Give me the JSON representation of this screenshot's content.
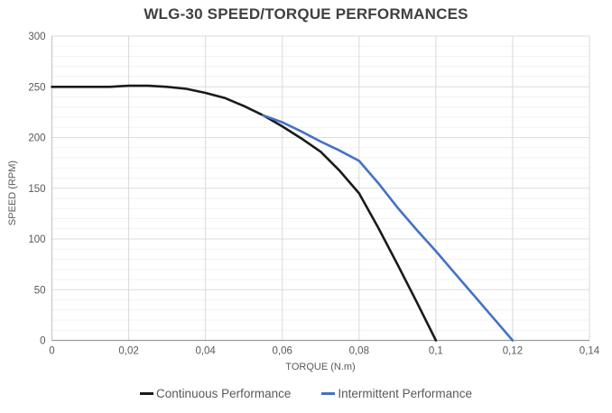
{
  "chart": {
    "title": "WLG-30 SPEED/TORQUE PERFORMANCES",
    "x_axis_title": "TORQUE (N.m)",
    "y_axis_title": "SPEED (RPM)"
  },
  "chart_data": {
    "type": "line",
    "title": "WLG-30 SPEED/TORQUE PERFORMANCES",
    "xlabel": "TORQUE (N.m)",
    "ylabel": "SPEED (RPM)",
    "xlim": [
      0,
      0.14
    ],
    "ylim": [
      0,
      300
    ],
    "x_ticks": [
      0,
      0.02,
      0.04,
      0.06,
      0.08,
      0.1,
      0.12,
      0.14
    ],
    "x_tick_labels": [
      "0",
      "0,02",
      "0,04",
      "0,06",
      "0,08",
      "0,1",
      "0,12",
      "0,14"
    ],
    "y_ticks": [
      0,
      50,
      100,
      150,
      200,
      250,
      300
    ],
    "y_tick_labels": [
      "0",
      "50",
      "100",
      "150",
      "200",
      "250",
      "300"
    ],
    "grid": {
      "major_y_step": 50,
      "minor_y_step": 10,
      "major_x_step": 0.02,
      "minor_x": false
    },
    "legend_position": "bottom",
    "colors": {
      "minor_gridline": "#f2f2f2",
      "major_gridline": "#dedede",
      "vertical_gridline": "#d9d9d9",
      "x_axis_line": "#9b9b9b",
      "y_axis_line": "#c0c0c0",
      "tick_label": "#595959"
    },
    "series": [
      {
        "name": "Continuous Performance",
        "color": "#1a1a1a",
        "x": [
          0,
          0.005,
          0.01,
          0.015,
          0.02,
          0.025,
          0.03,
          0.035,
          0.04,
          0.045,
          0.05,
          0.055,
          0.06,
          0.065,
          0.07,
          0.075,
          0.08,
          0.085,
          0.09,
          0.095,
          0.1
        ],
        "y": [
          250,
          250,
          250,
          250,
          251,
          251,
          250,
          248,
          244,
          239,
          231,
          222,
          211,
          199,
          186,
          167,
          145,
          111,
          75,
          38,
          0
        ]
      },
      {
        "name": "Intermittent Performance",
        "color": "#4472c4",
        "x": [
          0.055,
          0.06,
          0.065,
          0.07,
          0.075,
          0.08,
          0.085,
          0.09,
          0.095,
          0.1,
          0.105,
          0.11,
          0.115,
          0.12
        ],
        "y": [
          222,
          215,
          206,
          196,
          187,
          177,
          155,
          131,
          109,
          88,
          66,
          44,
          22,
          0
        ]
      }
    ]
  }
}
